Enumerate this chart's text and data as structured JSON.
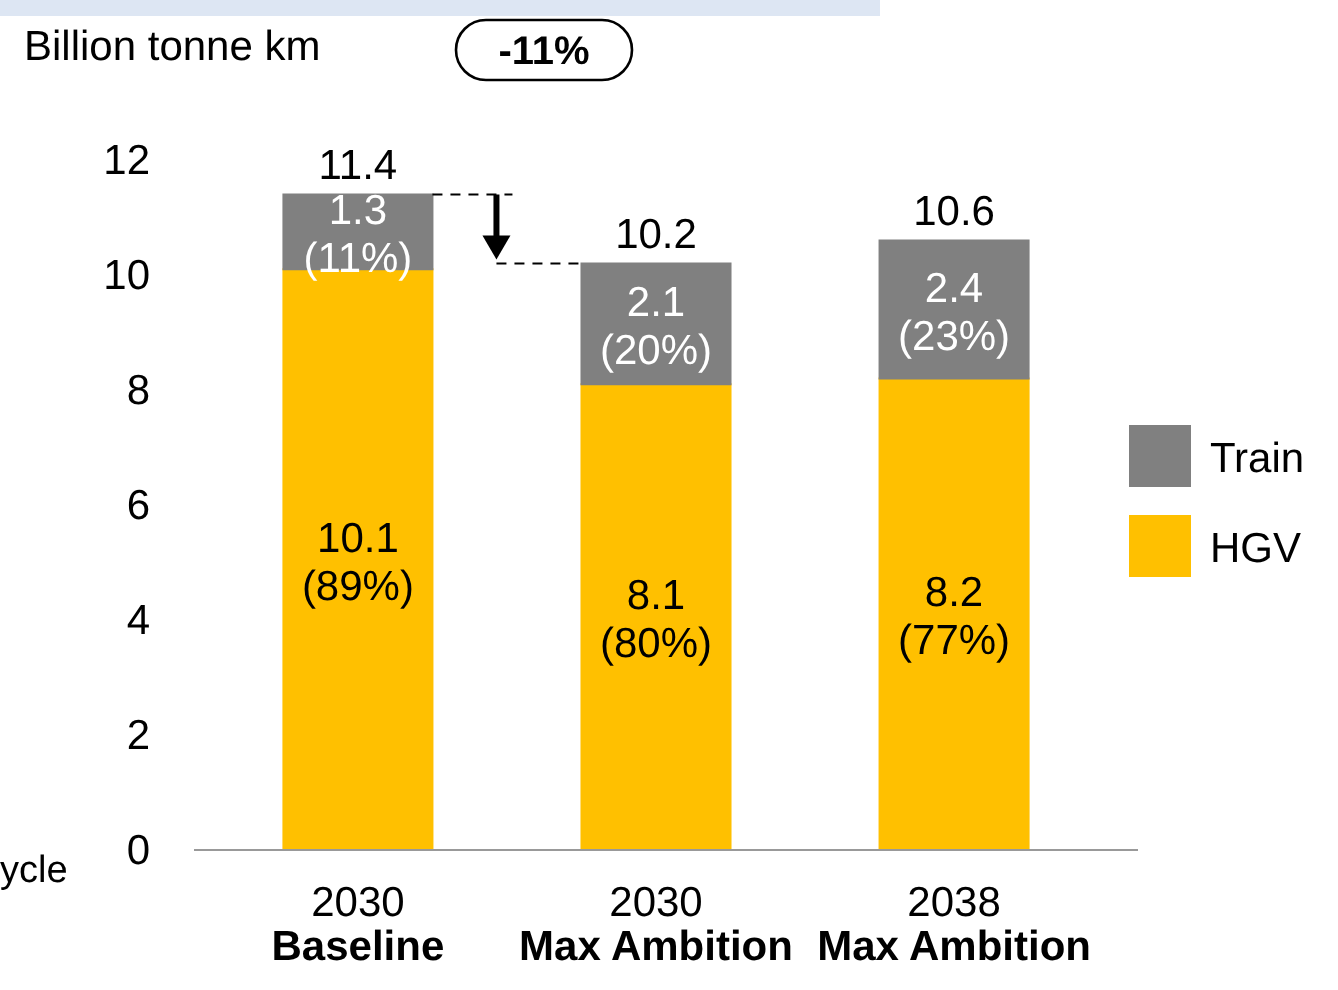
{
  "chart_data": {
    "type": "bar",
    "stacked": true,
    "ylabel": "Billion tonne km",
    "categories": [
      "2030\nBaseline",
      "2030\nMax Ambition",
      "2038\nMax Ambition"
    ],
    "series": [
      {
        "name": "HGV",
        "color": "#ffc000",
        "values": [
          10.1,
          8.1,
          8.2
        ],
        "value_labels": [
          "10.1\n(89%)",
          "8.1\n(80%)",
          "8.2\n(77%)"
        ]
      },
      {
        "name": "Train",
        "color": "#808080",
        "values": [
          1.3,
          2.1,
          2.4
        ],
        "value_labels": [
          "1.3\n(11%)",
          "2.1\n(20%)",
          "2.4\n(23%)"
        ]
      }
    ],
    "totals": [
      "11.4",
      "10.2",
      "10.6"
    ],
    "ylim": [
      0,
      12
    ],
    "yticks": [
      0,
      2,
      4,
      6,
      8,
      10,
      12
    ],
    "grid": false,
    "legend": "right",
    "annotations": [
      "-11%",
      "ycle"
    ]
  }
}
